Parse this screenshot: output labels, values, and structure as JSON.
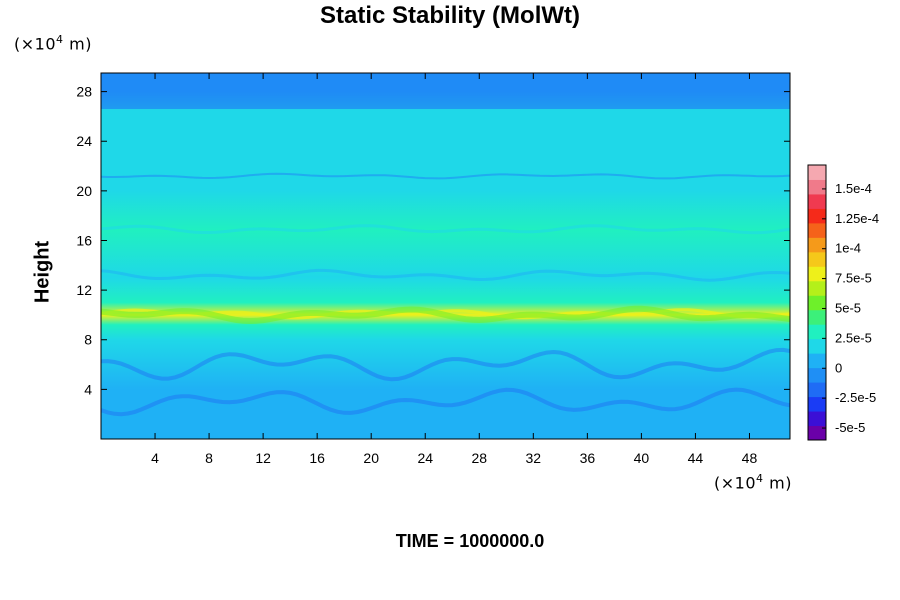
{
  "chart_data": {
    "type": "heatmap",
    "title": "Static Stability (MolWt)",
    "ylabel": "Height",
    "y_unit": {
      "prefix": "(×10",
      "exp": "4",
      "suffix": " m)"
    },
    "x_unit": {
      "prefix": "(×10",
      "exp": "4",
      "suffix": " m)"
    },
    "xlim": [
      0,
      51
    ],
    "ylim": [
      0,
      29.5
    ],
    "x_ticks": [
      "4",
      "8",
      "12",
      "16",
      "20",
      "24",
      "28",
      "32",
      "36",
      "40",
      "44",
      "48"
    ],
    "y_ticks": [
      "4",
      "8",
      "12",
      "16",
      "20",
      "24",
      "28"
    ],
    "colorbar": {
      "min": -6e-05,
      "max": 0.00017,
      "labels": [
        {
          "text": "1.5e-4",
          "value": 0.00015
        },
        {
          "text": "1.25e-4",
          "value": 0.000125
        },
        {
          "text": "1e-4",
          "value": 0.0001
        },
        {
          "text": "7.5e-5",
          "value": 7.5e-05
        },
        {
          "text": "5e-5",
          "value": 5e-05
        },
        {
          "text": "2.5e-5",
          "value": 2.5e-05
        },
        {
          "text": "0",
          "value": 0
        },
        {
          "text": "-2.5e-5",
          "value": -2.5e-05
        },
        {
          "text": "-5e-5",
          "value": -5e-05
        }
      ]
    },
    "profile": [
      {
        "height": 0.5,
        "value": 1e-05
      },
      {
        "height": 4,
        "value": 1.2e-05
      },
      {
        "height": 8,
        "value": 1.4e-05
      },
      {
        "height": 9.2,
        "value": 3e-05
      },
      {
        "height": 10.0,
        "value": 7.5e-05
      },
      {
        "height": 11.0,
        "value": 3.5e-05
      },
      {
        "height": 13,
        "value": 2e-05
      },
      {
        "height": 16.8,
        "value": 2.5e-05
      },
      {
        "height": 20,
        "value": 1.8e-05
      },
      {
        "height": 24,
        "value": 1.5e-05
      },
      {
        "height": 26.5,
        "value": 1.4e-05
      },
      {
        "height": 28,
        "value": 1e-05
      }
    ]
  },
  "footer": {
    "time_label": "TIME = 1000000.0"
  },
  "colors": {
    "background": "#ffffff",
    "palette": [
      "#6a00a8",
      "#3b0fd6",
      "#1a3cf5",
      "#1f6cf5",
      "#1f8ff5",
      "#1fb1f5",
      "#1fd8e8",
      "#20f0c0",
      "#3cf07a",
      "#6ef02a",
      "#b4f01a",
      "#eef01a",
      "#f5c81a",
      "#f59a1a",
      "#f5621a",
      "#f52a1a",
      "#f03a50",
      "#f07a8a",
      "#f5a8b0"
    ]
  }
}
